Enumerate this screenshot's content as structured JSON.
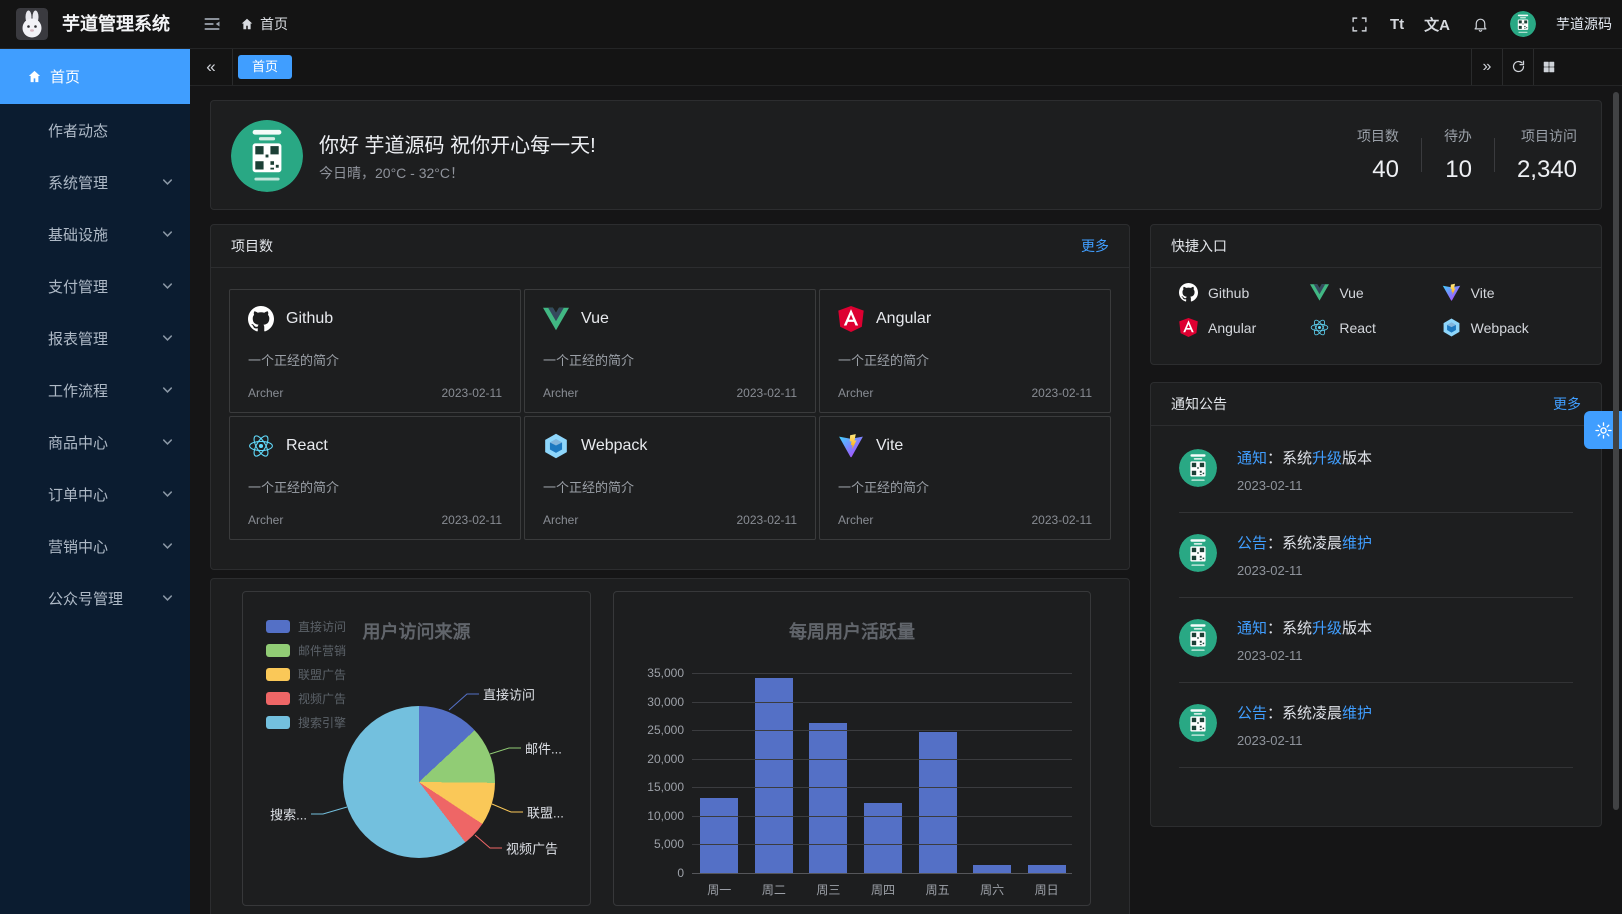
{
  "theme": {
    "accent": "#409eff",
    "sidebar_bg": "#0b1c30",
    "card_bg": "#1d1e1f",
    "page_bg": "#151516",
    "avatar_green": "#29a884"
  },
  "header": {
    "app_title": "芋道管理系统",
    "breadcrumb": {
      "home": "首页"
    },
    "icons": [
      "fullscreen-icon",
      "font-size-icon",
      "translate-icon",
      "bell-icon"
    ],
    "font_size_label": "Tt",
    "translate_label": "文A",
    "user": {
      "name": "芋道源码"
    }
  },
  "sidebar": {
    "items": [
      {
        "label": "首页",
        "active": true,
        "expandable": false
      },
      {
        "label": "作者动态",
        "active": false,
        "expandable": false
      },
      {
        "label": "系统管理",
        "active": false,
        "expandable": true
      },
      {
        "label": "基础设施",
        "active": false,
        "expandable": true
      },
      {
        "label": "支付管理",
        "active": false,
        "expandable": true
      },
      {
        "label": "报表管理",
        "active": false,
        "expandable": true
      },
      {
        "label": "工作流程",
        "active": false,
        "expandable": true
      },
      {
        "label": "商品中心",
        "active": false,
        "expandable": true
      },
      {
        "label": "订单中心",
        "active": false,
        "expandable": true
      },
      {
        "label": "营销中心",
        "active": false,
        "expandable": true
      },
      {
        "label": "公众号管理",
        "active": false,
        "expandable": true
      }
    ]
  },
  "tabbar": {
    "tabs": [
      {
        "label": "首页",
        "active": true
      }
    ]
  },
  "welcome": {
    "greeting": "你好 芋道源码 祝你开心每一天!",
    "weather": "今日晴，20°C - 32°C！",
    "stats": [
      {
        "label": "项目数",
        "value": "40"
      },
      {
        "label": "待办",
        "value": "10"
      },
      {
        "label": "项目访问",
        "value": "2,340"
      }
    ]
  },
  "projects": {
    "title": "项目数",
    "more_label": "更多",
    "items": [
      {
        "icon": "github-icon",
        "name": "Github",
        "desc": "一个正经的简介",
        "author": "Archer",
        "date": "2023-02-11"
      },
      {
        "icon": "vue-icon",
        "name": "Vue",
        "desc": "一个正经的简介",
        "author": "Archer",
        "date": "2023-02-11"
      },
      {
        "icon": "angular-icon",
        "name": "Angular",
        "desc": "一个正经的简介",
        "author": "Archer",
        "date": "2023-02-11"
      },
      {
        "icon": "react-icon",
        "name": "React",
        "desc": "一个正经的简介",
        "author": "Archer",
        "date": "2023-02-11"
      },
      {
        "icon": "webpack-icon",
        "name": "Webpack",
        "desc": "一个正经的简介",
        "author": "Archer",
        "date": "2023-02-11"
      },
      {
        "icon": "vite-icon",
        "name": "Vite",
        "desc": "一个正经的简介",
        "author": "Archer",
        "date": "2023-02-11"
      }
    ]
  },
  "shortcuts": {
    "title": "快捷入口",
    "items": [
      {
        "icon": "github-icon",
        "label": "Github"
      },
      {
        "icon": "vue-icon",
        "label": "Vue"
      },
      {
        "icon": "vite-icon",
        "label": "Vite"
      },
      {
        "icon": "angular-icon",
        "label": "Angular"
      },
      {
        "icon": "react-icon",
        "label": "React"
      },
      {
        "icon": "webpack-icon",
        "label": "Webpack"
      }
    ]
  },
  "notices": {
    "title": "通知公告",
    "more_label": "更多",
    "items": [
      {
        "segments": [
          {
            "text": "通知",
            "highlight": true
          },
          {
            "text": "：系统",
            "highlight": false
          },
          {
            "text": "升级",
            "highlight": true
          },
          {
            "text": "版本",
            "highlight": false
          }
        ],
        "date": "2023-02-11"
      },
      {
        "segments": [
          {
            "text": "公告",
            "highlight": true
          },
          {
            "text": "：系统凌晨",
            "highlight": false
          },
          {
            "text": "维护",
            "highlight": true
          }
        ],
        "date": "2023-02-11"
      },
      {
        "segments": [
          {
            "text": "通知",
            "highlight": true
          },
          {
            "text": "：系统",
            "highlight": false
          },
          {
            "text": "升级",
            "highlight": true
          },
          {
            "text": "版本",
            "highlight": false
          }
        ],
        "date": "2023-02-11"
      },
      {
        "segments": [
          {
            "text": "公告",
            "highlight": true
          },
          {
            "text": "：系统凌晨",
            "highlight": false
          },
          {
            "text": "维护",
            "highlight": true
          }
        ],
        "date": "2023-02-11"
      }
    ]
  },
  "chart_data": [
    {
      "type": "pie",
      "title": "用户访问来源",
      "legend_position": "left",
      "labels": [
        "直接访问",
        "邮件营销",
        "联盟广告",
        "视频广告",
        "搜索引擎"
      ],
      "values": [
        335,
        310,
        234,
        135,
        1548
      ],
      "colors": [
        "#5470c6",
        "#91cc75",
        "#fac858",
        "#ee6666",
        "#73c0de"
      ],
      "callout_labels": [
        "直接访问",
        "邮件...",
        "联盟...",
        "视频广告",
        "搜索..."
      ]
    },
    {
      "type": "bar",
      "title": "每周用户活跃量",
      "categories": [
        "周一",
        "周二",
        "周三",
        "周四",
        "周五",
        "周六",
        "周日"
      ],
      "values": [
        13200,
        34200,
        26300,
        12300,
        24600,
        1400,
        1400
      ],
      "bar_color": "#5470c6",
      "xlabel": "",
      "ylabel": "",
      "ylim": [
        0,
        35000
      ],
      "ytick_step": 5000,
      "ytick_labels": [
        "0",
        "5,000",
        "10,000",
        "15,000",
        "20,000",
        "25,000",
        "30,000",
        "35,000"
      ],
      "grid": true,
      "legend_position": "none"
    }
  ]
}
